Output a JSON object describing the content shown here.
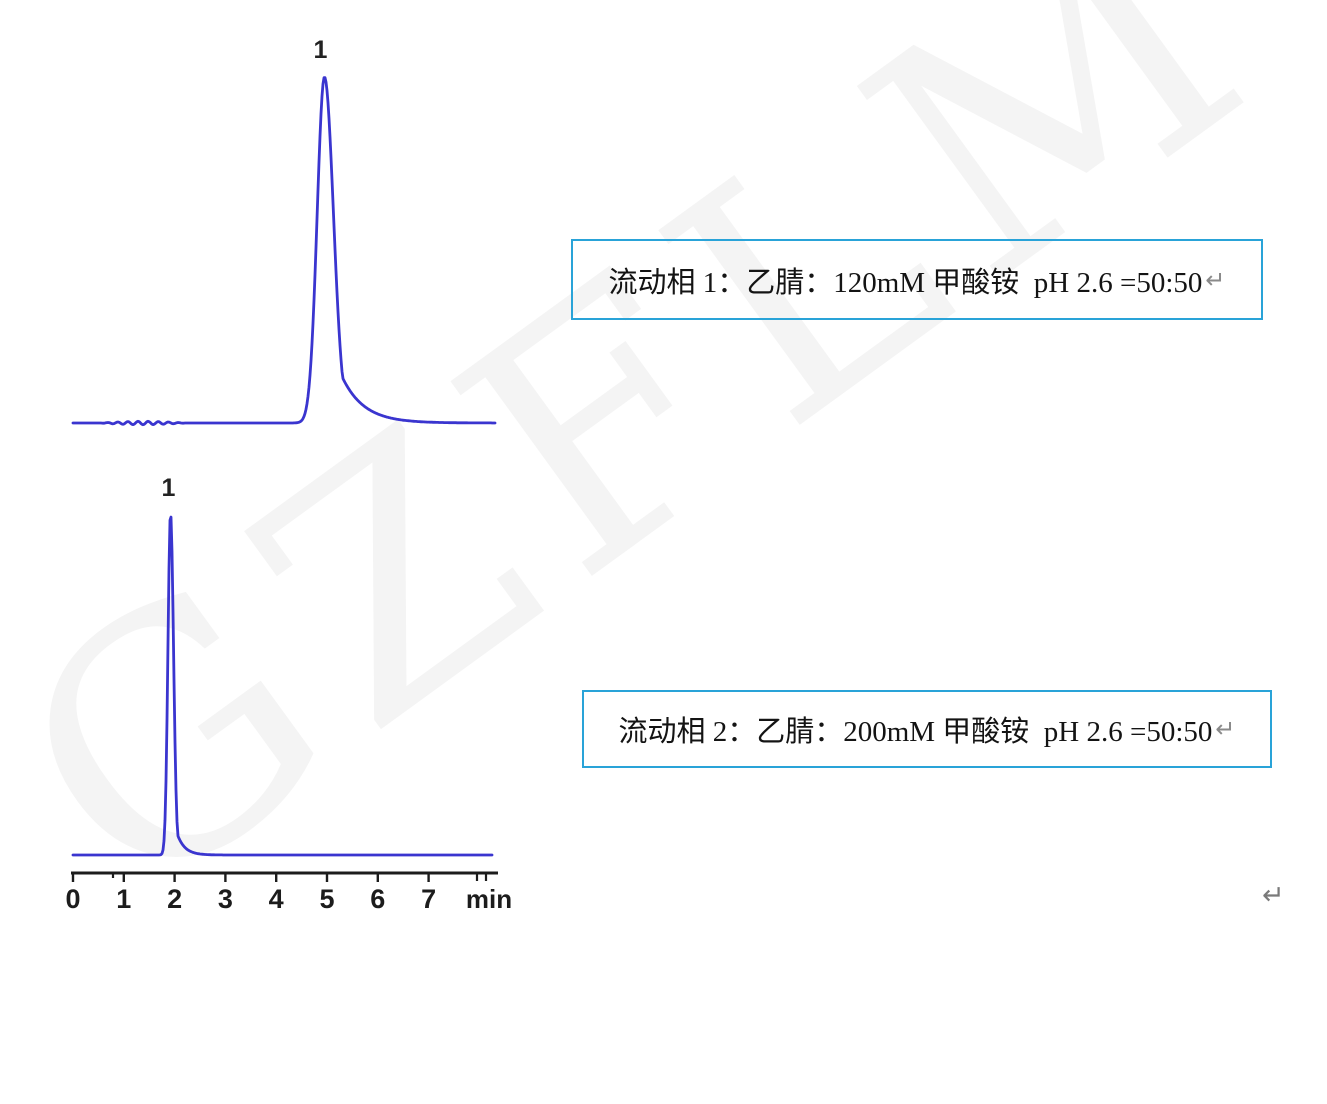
{
  "page": {
    "background_color": "#ffffff",
    "watermark_text": "GZFLM",
    "watermark_color": "#f4f4f4",
    "paragraph_return_mark": "↵"
  },
  "annotation_boxes": [
    {
      "label": "流动相 1：乙腈：120mM 甲酸铵  pH 2.6 =50:50",
      "return_mark": "↵",
      "border_color": "#29a3d8"
    },
    {
      "label": "流动相 2：乙腈：200mM 甲酸铵  pH 2.6 =50:50",
      "return_mark": "↵",
      "border_color": "#29a3d8"
    }
  ],
  "chart_data": [
    {
      "id": "chromatogram-1",
      "type": "line",
      "title": "HPLC chromatogram, mobile phase 1 (acetonitrile : 120mM ammonium formate pH 2.6 = 50:50)",
      "line_color": "#3a35cf",
      "x_unit": "min",
      "x_range": [
        0,
        8.3
      ],
      "x_axis_visible": false,
      "baseline_noise_region_min": [
        0.55,
        2.25
      ],
      "peaks": [
        {
          "label": "1",
          "retention_time_min": 4.95,
          "relative_height": 1.0,
          "width_left_min": 0.143,
          "width_right_min": 0.177,
          "tail_amp": 0.3,
          "tail_tau_min": 0.43
        }
      ]
    },
    {
      "id": "chromatogram-2",
      "type": "line",
      "title": "HPLC chromatogram, mobile phase 2 (acetonitrile : 200mM ammonium formate pH 2.6 = 50:50)",
      "line_color": "#3a35cf",
      "axis_color": "#1c1c1c",
      "x_unit": "min",
      "x_range": [
        0,
        8.25
      ],
      "x_axis_visible": true,
      "x_ticks": [
        0,
        1,
        2,
        3,
        4,
        5,
        6,
        7
      ],
      "x_axis_label": "min",
      "peaks": [
        {
          "label": "1",
          "retention_time_min": 1.92,
          "relative_height": 1.0,
          "width_left_min": 0.051,
          "width_right_min": 0.059,
          "tail_amp": 0.15,
          "tail_tau_min": 0.148
        }
      ]
    }
  ]
}
